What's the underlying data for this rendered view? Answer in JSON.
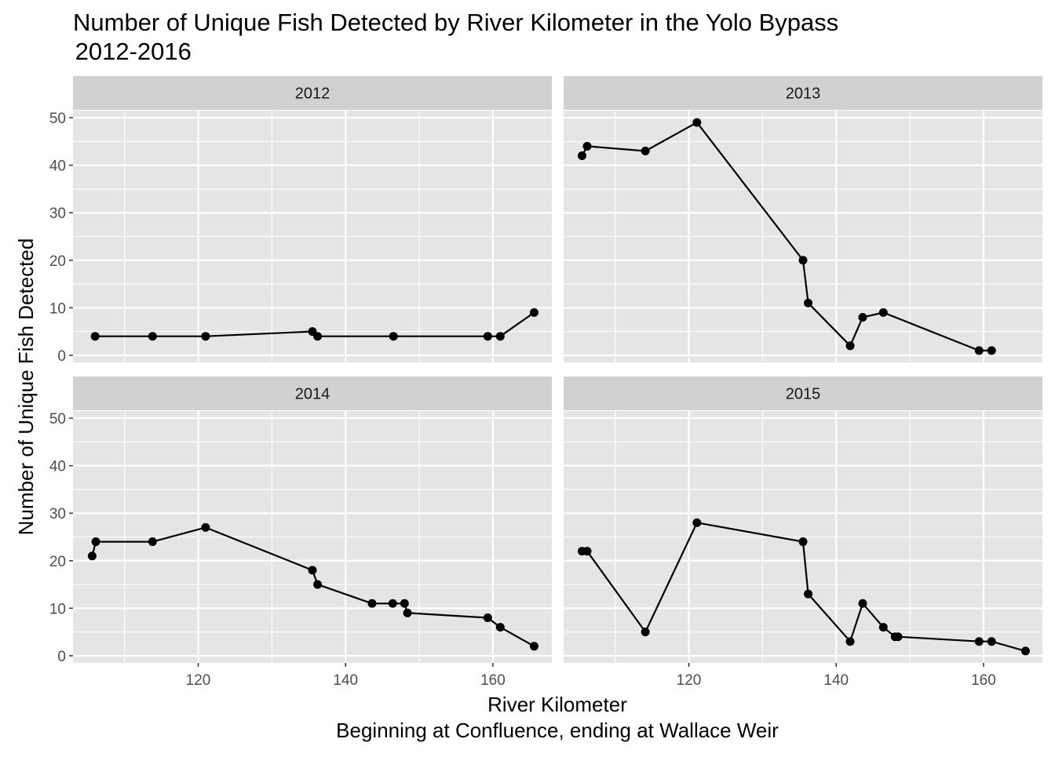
{
  "title": "Number of Unique Fish Detected by River Kilometer in the Yolo Bypass",
  "subtitle": " 2012-2016",
  "xlabel": "River Kilometer",
  "xlabel_sub": "Beginning at Confluence, ending at Wallace Weir",
  "ylabel": "Number of Unique Fish Detected",
  "colors": {
    "panel_bg": "#e5e5e5",
    "strip_bg": "#d1d1d1",
    "grid": "#ffffff",
    "line": "#000000",
    "text": "#1a1a1a",
    "tick_text": "#4d4d4d"
  },
  "chart_data": {
    "type": "line",
    "facet": "year",
    "layout": "2x2",
    "xlim": [
      103,
      168
    ],
    "ylim": [
      -1.5,
      51.5
    ],
    "x_ticks": [
      120,
      140,
      160
    ],
    "y_ticks": [
      0,
      10,
      20,
      30,
      40,
      50
    ],
    "grid": true,
    "markers": true,
    "panels": [
      {
        "label": "2012",
        "points": [
          {
            "x": 106.0,
            "y": 4
          },
          {
            "x": 113.8,
            "y": 4
          },
          {
            "x": 121.0,
            "y": 4
          },
          {
            "x": 135.5,
            "y": 5
          },
          {
            "x": 136.2,
            "y": 4
          },
          {
            "x": 146.5,
            "y": 4
          },
          {
            "x": 159.3,
            "y": 4
          },
          {
            "x": 161.0,
            "y": 4
          },
          {
            "x": 165.6,
            "y": 9
          }
        ]
      },
      {
        "label": "2013",
        "points": [
          {
            "x": 105.5,
            "y": 42
          },
          {
            "x": 106.2,
            "y": 44
          },
          {
            "x": 114.1,
            "y": 43
          },
          {
            "x": 121.1,
            "y": 49
          },
          {
            "x": 135.5,
            "y": 20
          },
          {
            "x": 136.2,
            "y": 11
          },
          {
            "x": 141.9,
            "y": 2
          },
          {
            "x": 143.6,
            "y": 8
          },
          {
            "x": 146.4,
            "y": 9
          },
          {
            "x": 159.4,
            "y": 1
          },
          {
            "x": 161.1,
            "y": 1
          }
        ]
      },
      {
        "label": "2014",
        "points": [
          {
            "x": 105.6,
            "y": 21
          },
          {
            "x": 106.1,
            "y": 24
          },
          {
            "x": 113.8,
            "y": 24
          },
          {
            "x": 121.0,
            "y": 27
          },
          {
            "x": 135.5,
            "y": 18
          },
          {
            "x": 136.2,
            "y": 15
          },
          {
            "x": 143.6,
            "y": 11
          },
          {
            "x": 146.4,
            "y": 11
          },
          {
            "x": 148.0,
            "y": 11
          },
          {
            "x": 148.4,
            "y": 9
          },
          {
            "x": 159.3,
            "y": 8
          },
          {
            "x": 161.0,
            "y": 6
          },
          {
            "x": 165.6,
            "y": 2
          }
        ]
      },
      {
        "label": "2015",
        "points": [
          {
            "x": 105.5,
            "y": 22
          },
          {
            "x": 106.2,
            "y": 22
          },
          {
            "x": 114.1,
            "y": 5
          },
          {
            "x": 121.1,
            "y": 28
          },
          {
            "x": 135.5,
            "y": 24
          },
          {
            "x": 136.2,
            "y": 13
          },
          {
            "x": 141.9,
            "y": 3
          },
          {
            "x": 143.6,
            "y": 11
          },
          {
            "x": 146.4,
            "y": 6
          },
          {
            "x": 148.0,
            "y": 4
          },
          {
            "x": 148.4,
            "y": 4
          },
          {
            "x": 159.4,
            "y": 3
          },
          {
            "x": 161.1,
            "y": 3
          },
          {
            "x": 165.7,
            "y": 1
          }
        ]
      }
    ]
  }
}
